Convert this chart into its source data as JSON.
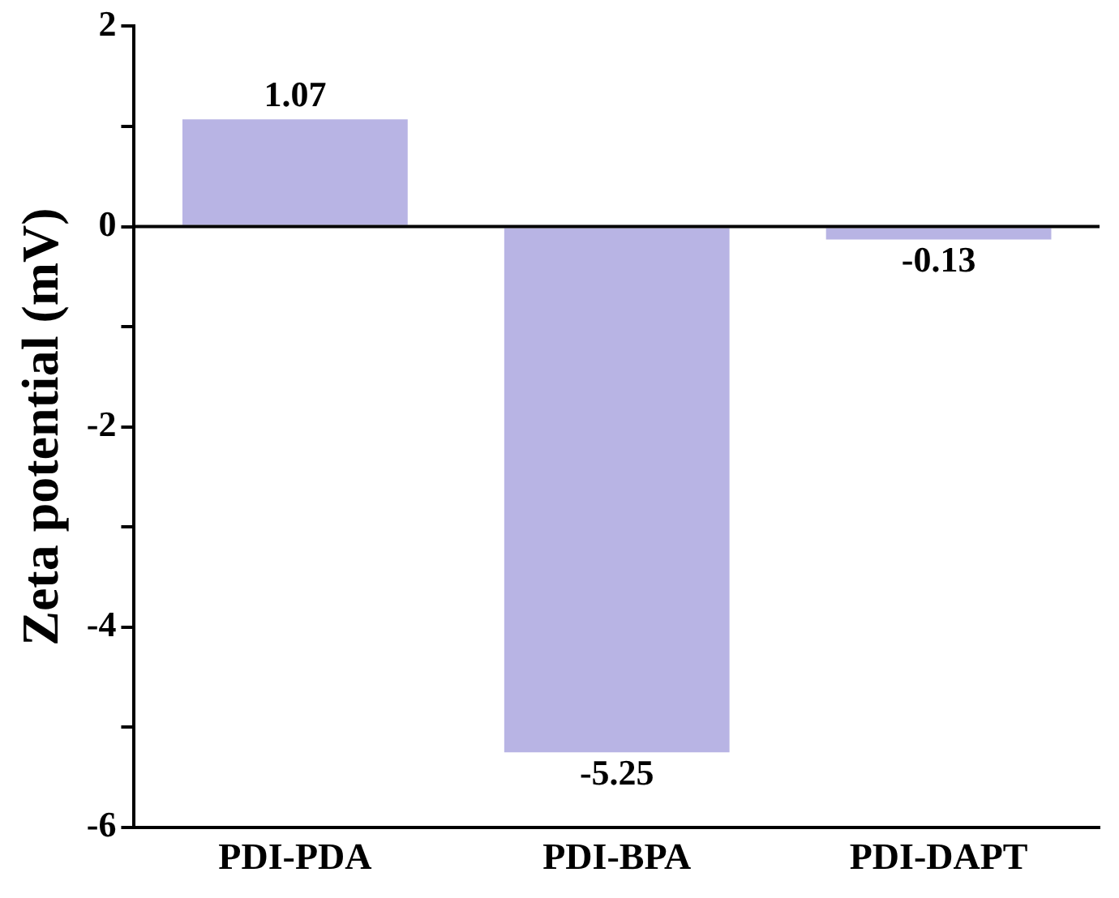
{
  "chart_data": {
    "type": "bar",
    "ylabel": "Zeta potential (mV)",
    "categories": [
      "PDI-PDA",
      "PDI-BPA",
      "PDI-DAPT"
    ],
    "values": [
      1.07,
      -5.25,
      -0.13
    ],
    "color": "#b8b4e4",
    "ylim": [
      -6,
      2
    ],
    "yticks": [
      -6,
      {
        "value": -5,
        "label": null
      },
      -4,
      {
        "value": -3,
        "label": null
      },
      -2,
      {
        "value": -1,
        "label": null
      },
      0,
      {
        "value": 1,
        "label": null
      },
      2
    ],
    "ref_lines": [
      {
        "axis": "y",
        "value": 0,
        "color": "#000000"
      }
    ],
    "data_labels": true,
    "grid": false,
    "legend": false
  }
}
